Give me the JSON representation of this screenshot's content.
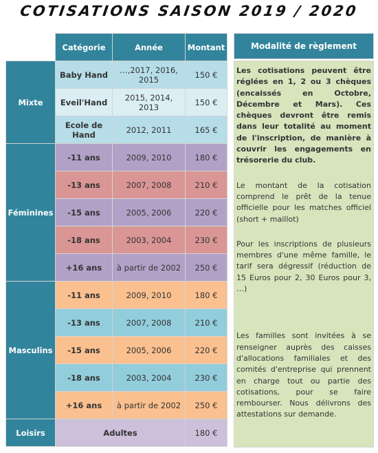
{
  "title": "COTISATIONS SAISON 2019 / 2020",
  "table": {
    "header": [
      "Catégorie",
      "Année",
      "Montant"
    ],
    "groups": [
      {
        "name": "Mixte",
        "rows": [
          [
            "Baby Hand",
            "…,2017,  2016, 2015",
            "150 €"
          ],
          [
            "Eveil'Hand",
            "2015, 2014, 2013",
            "150 €"
          ],
          [
            "Ecole de Hand",
            "2012, 2011",
            "165 €"
          ]
        ]
      },
      {
        "name": "Féminines",
        "rows": [
          [
            "-11 ans",
            "2009, 2010",
            "180 €"
          ],
          [
            "-13 ans",
            "2007, 2008",
            "210 €"
          ],
          [
            "-15 ans",
            "2005, 2006",
            "220 €"
          ],
          [
            "-18 ans",
            "2003, 2004",
            "230 €"
          ],
          [
            "+16 ans",
            "à partir de 2002",
            "250 €"
          ]
        ]
      },
      {
        "name": "Masculins",
        "rows": [
          [
            "-11 ans",
            "2009, 2010",
            "180 €"
          ],
          [
            "-13 ans",
            "2007, 2008",
            "210 €"
          ],
          [
            "-15 ans",
            "2005, 2006",
            "220 €"
          ],
          [
            "-18 ans",
            "2003, 2004",
            "230 €"
          ],
          [
            "+16 ans",
            "à partir de 2002",
            "250 €"
          ]
        ]
      },
      {
        "name": "Loisirs",
        "rows": [
          [
            "Adultes",
            "180 €"
          ]
        ]
      }
    ]
  },
  "panel": {
    "title": "Modalité de règlement",
    "paragraphs": [
      "Les cotisations peuvent être réglées en 1, 2 ou 3 chèques (encaissés en Octobre, Décembre et Mars). Ces chèques devront être remis dans leur totalité au moment de l'inscription, de manière à couvrir les engagements en trésorerie du club.",
      "Le montant de la cotisation comprend le prêt de la tenue officielle pour les matches officiel (short + maillot)",
      "Pour les inscriptions de plusieurs membres d'une même famille, le tarif sera dégressif (réduction de 15 Euros pour 2, 30 Euros pour 3, …)",
      "Les familles sont invitées à se renseigner auprès des caisses d'allocations familiales et des comités d'entreprise qui prennent en charge tout ou partie des cotisations, pour se faire rembourser. Nous délivrons des attestations sur demande."
    ]
  }
}
